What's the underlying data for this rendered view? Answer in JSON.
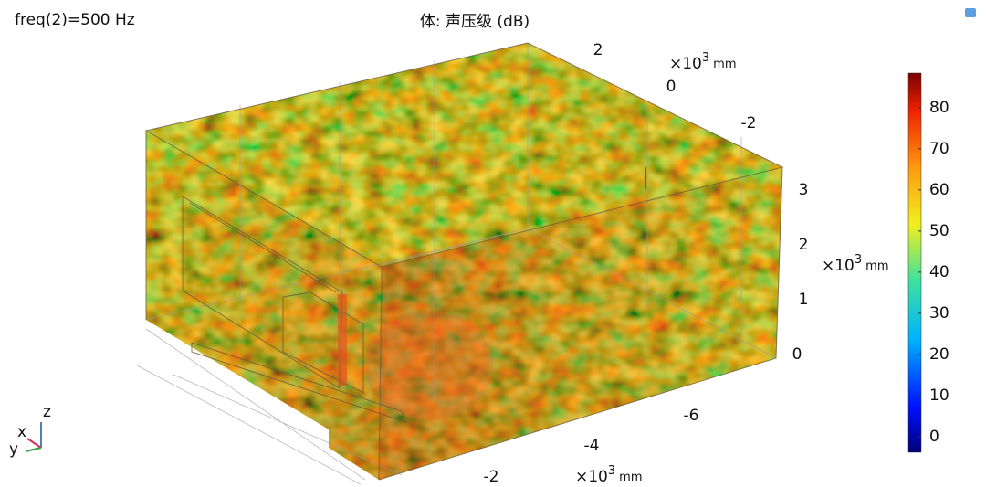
{
  "parameter": "freq(2)=500 Hz",
  "title": "体: 声压级 (dB)",
  "colorbar": {
    "range": [
      -3.8,
      88.4
    ],
    "ticks": [
      0,
      10,
      20,
      30,
      40,
      50,
      60,
      70,
      80
    ]
  },
  "axes": {
    "x": {
      "ticks": [
        "-2",
        "-4",
        "-6"
      ],
      "unit": {
        "prefix": "×10",
        "exponent": "3",
        "unit": "mm"
      }
    },
    "y": {
      "ticks": [
        "2",
        "0",
        "-2"
      ],
      "unit": {
        "prefix": "×10",
        "exponent": "3",
        "unit": "mm"
      }
    },
    "z": {
      "ticks": [
        "3",
        "2",
        "1",
        "0"
      ],
      "unit": {
        "prefix": "×10",
        "exponent": "3",
        "unit": "mm"
      }
    }
  },
  "triad": {
    "z": "z",
    "x": "x",
    "y": "y"
  }
}
